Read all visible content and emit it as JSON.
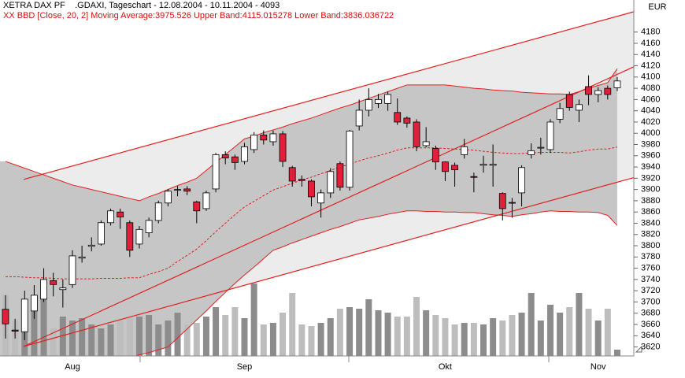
{
  "chart_data": {
    "type": "candlestick",
    "title": "XETRA DAX PF",
    "subtitle": ".GDAXI, Tageschart - 12.08.2004 - 10.11.2004 - 4093",
    "indicator_label": "XX BBD [Close, 20, 2] Moving Average:3975.526 Upper Band:4115.015278 Lower Band:3836.036722",
    "currency": "EUR",
    "categories": [
      null,
      null,
      null,
      null,
      null,
      null,
      null,
      "Aug",
      null,
      null,
      null,
      null,
      null,
      null,
      null,
      null,
      null,
      null,
      null,
      null,
      null,
      null,
      null,
      null,
      null,
      "Sep",
      null,
      null,
      null,
      null,
      null,
      null,
      null,
      null,
      null,
      null,
      null,
      null,
      null,
      null,
      null,
      null,
      null,
      null,
      null,
      null,
      "Okt",
      null,
      null,
      null,
      null,
      null,
      null,
      null,
      null,
      null,
      null,
      null,
      null,
      null,
      null,
      null,
      "Nov",
      null,
      null
    ],
    "open": [
      3687,
      3650,
      3647,
      3684,
      3705,
      3738,
      3722,
      3731,
      3778,
      3799,
      3803,
      3841,
      3860,
      3841,
      3803,
      3823,
      3845,
      3876,
      3899,
      3901,
      3878,
      3866,
      3901,
      3962,
      3958,
      3950,
      3971,
      3997,
      3985,
      3999,
      3939,
      3918,
      3915,
      3876,
      3894,
      3946,
      3904,
      4013,
      4041,
      4053,
      4053,
      4037,
      4027,
      4020,
      3978,
      3973,
      3949,
      3943,
      3962,
      3923,
      3943,
      3943,
      3893,
      3877,
      3894,
      3962,
      3974,
      3971,
      4025,
      4069,
      4041,
      4083,
      4069,
      4080,
      4081
    ],
    "high": [
      3712,
      3670,
      3720,
      3730,
      3760,
      3752,
      3740,
      3792,
      3800,
      3815,
      3845,
      3866,
      3866,
      3845,
      3835,
      3850,
      3880,
      3901,
      3906,
      3906,
      3880,
      3898,
      3965,
      3968,
      3962,
      3983,
      4002,
      4005,
      4005,
      4004,
      3942,
      3925,
      3918,
      3900,
      3938,
      3950,
      4006,
      4060,
      4080,
      4070,
      4074,
      4062,
      4030,
      4025,
      4011,
      3978,
      3950,
      3948,
      3990,
      3930,
      3960,
      3980,
      3895,
      3885,
      3943,
      3982,
      3992,
      4025,
      4054,
      4074,
      4060,
      4103,
      4082,
      4085,
      4100
    ],
    "low": [
      3635,
      3635,
      3632,
      3670,
      3700,
      3710,
      3690,
      3725,
      3770,
      3790,
      3800,
      3836,
      3830,
      3780,
      3795,
      3815,
      3840,
      3870,
      3888,
      3890,
      3840,
      3862,
      3895,
      3945,
      3935,
      3945,
      3965,
      3980,
      3978,
      3940,
      3905,
      3905,
      3870,
      3850,
      3885,
      3898,
      3898,
      4005,
      4030,
      4045,
      4040,
      4015,
      4010,
      3968,
      3975,
      3935,
      3915,
      3905,
      3955,
      3895,
      3930,
      3905,
      3845,
      3850,
      3870,
      3955,
      3962,
      3965,
      4018,
      4040,
      4020,
      4050,
      4055,
      4060,
      4075
    ],
    "close": [
      3661,
      3648,
      3705,
      3712,
      3740,
      3731,
      3725,
      3782,
      3780,
      3801,
      3841,
      3862,
      3851,
      3792,
      3829,
      3845,
      3876,
      3897,
      3900,
      3897,
      3862,
      3894,
      3962,
      3956,
      3948,
      3976,
      3997,
      3988,
      3999,
      3950,
      3915,
      3916,
      3887,
      3894,
      3932,
      3904,
      4004,
      4041,
      4060,
      4060,
      4069,
      4020,
      4018,
      3976,
      3985,
      3949,
      3932,
      3935,
      3976,
      3922,
      3945,
      3945,
      3866,
      3876,
      3939,
      3969,
      3975,
      4020,
      4044,
      4046,
      4051,
      4069,
      4076,
      4069,
      4093
    ],
    "volume": [
      78,
      45,
      52,
      60,
      75,
      35,
      50,
      45,
      48,
      40,
      35,
      40,
      45,
      48,
      50,
      52,
      40,
      45,
      55,
      40,
      42,
      50,
      62,
      52,
      62,
      48,
      92,
      40,
      42,
      55,
      80,
      40,
      38,
      42,
      48,
      60,
      62,
      60,
      72,
      58,
      55,
      50,
      50,
      75,
      58,
      52,
      48,
      40,
      42,
      42,
      40,
      48,
      45,
      52,
      55,
      80,
      45,
      65,
      55,
      62,
      80,
      60,
      45,
      60,
      8
    ],
    "bands": {
      "upper": [
        3950,
        3944,
        3938,
        3932,
        3926,
        3920,
        3914,
        3908,
        3904,
        3900,
        3896,
        3892,
        3888,
        3884,
        3880,
        3887,
        3893,
        3900,
        3907,
        3913,
        3920,
        3934,
        3948,
        3962,
        3976,
        3990,
        3995,
        4001,
        4006,
        4011,
        4017,
        4022,
        4027,
        4033,
        4039,
        4045,
        4050,
        4056,
        4062,
        4068,
        4074,
        4080,
        4086,
        4086,
        4086,
        4086,
        4086,
        4084,
        4082,
        4080,
        4079,
        4077,
        4076,
        4075,
        4073,
        4072,
        4071,
        4070,
        4070,
        4069,
        4074,
        4080,
        4085,
        4090,
        4115.015278
      ],
      "middle": [
        3745,
        3745,
        3744,
        3743,
        3743,
        3742,
        3741,
        3741,
        3741,
        3741,
        3742,
        3742,
        3742,
        3743,
        3743,
        3749,
        3754,
        3760,
        3772,
        3783,
        3794,
        3809,
        3825,
        3840,
        3855,
        3869,
        3879,
        3889,
        3899,
        3905,
        3911,
        3917,
        3922,
        3928,
        3934,
        3940,
        3945,
        3951,
        3956,
        3960,
        3965,
        3970,
        3974,
        3974,
        3974,
        3974,
        3973,
        3972,
        3971,
        3970,
        3968,
        3966,
        3965,
        3964,
        3964,
        3965,
        3966,
        3966,
        3966,
        3965,
        3967,
        3970,
        3972,
        3972,
        3975.526
      ],
      "lower": [
        3540,
        3545,
        3549,
        3554,
        3559,
        3563,
        3568,
        3573,
        3577,
        3582,
        3587,
        3592,
        3596,
        3601,
        3606,
        3610,
        3615,
        3620,
        3636,
        3652,
        3668,
        3684,
        3701,
        3717,
        3733,
        3748,
        3762,
        3777,
        3792,
        3798,
        3805,
        3811,
        3817,
        3823,
        3829,
        3834,
        3840,
        3846,
        3849,
        3852,
        3856,
        3859,
        3862,
        3862,
        3861,
        3861,
        3860,
        3860,
        3859,
        3859,
        3857,
        3855,
        3854,
        3852,
        3855,
        3857,
        3860,
        3862,
        3861,
        3861,
        3860,
        3860,
        3859,
        3854,
        3836.036722
      ]
    },
    "trendlines": [
      {
        "x": [
          1.9,
          65.7
        ],
        "y": [
          3918,
          4216
        ]
      },
      {
        "x": [
          1.9,
          65.7
        ],
        "y": [
          3621,
          4118
        ]
      },
      {
        "x": [
          1.9,
          65.7
        ],
        "y": [
          3621,
          3921
        ]
      }
    ],
    "ylim": [
      3604,
      4237
    ],
    "yticks": [
      3620,
      3640,
      3660,
      3680,
      3700,
      3720,
      3740,
      3760,
      3780,
      3800,
      3820,
      3840,
      3860,
      3880,
      3900,
      3920,
      3940,
      3960,
      3980,
      4000,
      4020,
      4040,
      4060,
      4080,
      4100,
      4120,
      4140,
      4160,
      4180
    ],
    "up_color": "#ffffff",
    "down_color": "#e0203a",
    "line_color": "#e02020",
    "band_fill": "#c6c6c6",
    "channel_fill": "#ececec",
    "volume_color": "#8c8c8c",
    "volume_light_color": "#bdbdbd"
  }
}
